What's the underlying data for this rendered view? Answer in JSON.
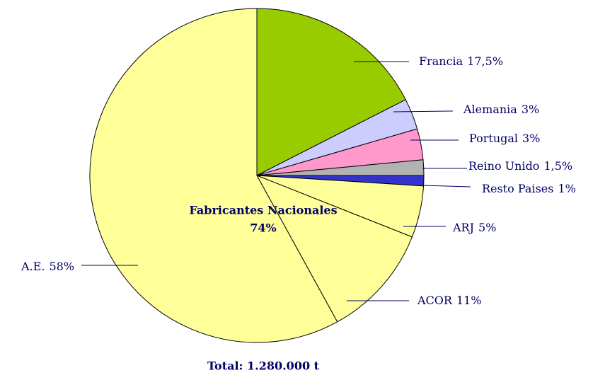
{
  "chart_data": {
    "type": "pie",
    "categories": [
      "Francia",
      "Alemania",
      "Portugal",
      "Reino Unido",
      "Resto Paises",
      "ARJ",
      "ACOR",
      "A.E."
    ],
    "values": [
      17.5,
      3,
      3,
      1.5,
      1,
      5,
      11,
      58
    ],
    "value_labels": [
      "17,5%",
      "3%",
      "3%",
      "1,5%",
      "1%",
      "5%",
      "11%",
      "58%"
    ],
    "colors": [
      "#99cc00",
      "#ccccff",
      "#ff99cc",
      "#b2b2b2",
      "#3333cc",
      "#ffff99",
      "#ffff99",
      "#ffff99"
    ],
    "annotation": {
      "text": "Fabricantes Nacionales",
      "value": 74,
      "value_label": "74%"
    },
    "footer": "Total: 1.280.000 t"
  }
}
